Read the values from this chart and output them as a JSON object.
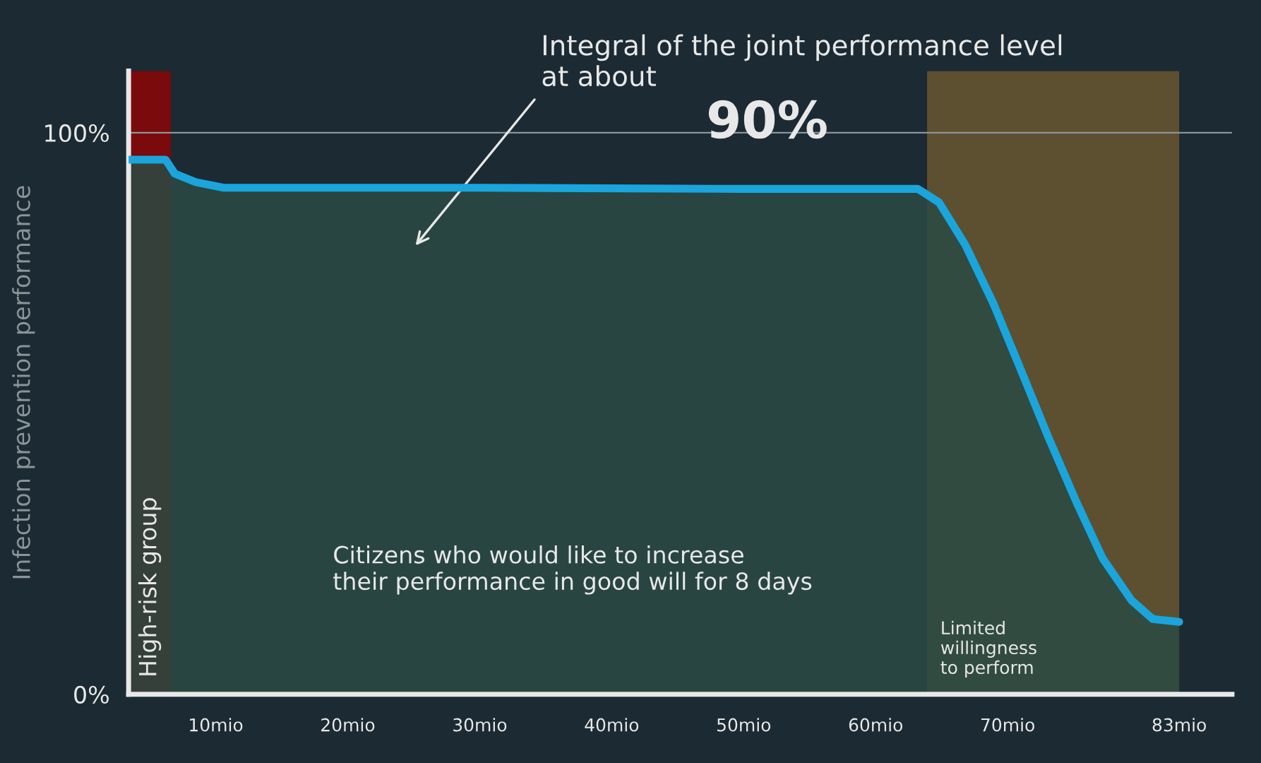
{
  "chart_data": {
    "type": "area",
    "ylabel": "Infection prevention performance",
    "x": [
      3.4,
      6.2,
      6.9,
      8.5,
      10.6,
      30,
      50,
      63.2,
      64.8,
      66.8,
      68.9,
      71,
      73.1,
      75.2,
      77.2,
      79.4,
      81,
      83
    ],
    "series": [
      {
        "color": "#1aa5dc",
        "values": [
          95.2,
          95.2,
          92.7,
          91.2,
          90.2,
          90.2,
          90.0,
          90.0,
          87.6,
          80,
          69.7,
          57.8,
          45.7,
          34.3,
          24.2,
          16.7,
          13.4,
          12.9
        ]
      }
    ],
    "xlim": [
      3.4,
      87
    ],
    "ylim": [
      0,
      111
    ],
    "xticks": [
      {
        "value": 10,
        "label": "10mio"
      },
      {
        "value": 20,
        "label": "20mio"
      },
      {
        "value": 30,
        "label": "30mio"
      },
      {
        "value": 40,
        "label": "40mio"
      },
      {
        "value": 50,
        "label": "50mio"
      },
      {
        "value": 60,
        "label": "60mio"
      },
      {
        "value": 70,
        "label": "70mio"
      },
      {
        "value": 83,
        "label": "83mio"
      }
    ],
    "yticks": [
      {
        "value": 0,
        "label": "0%"
      },
      {
        "value": 100,
        "label": "100%"
      }
    ],
    "grid": "y",
    "bands": [
      {
        "axis": "x",
        "from": 3.4,
        "to": 6.6,
        "label": "High-risk group",
        "color": "#7a0a0c"
      },
      {
        "axis": "x",
        "from": 63.9,
        "to": 83,
        "label": "Limited\nwillingness\nto perform",
        "color": "#6e5a30"
      }
    ],
    "annotations": [
      "Integral of the joint performance level\nat about",
      "90%",
      "Citizens who would like to increase\ntheir performance in good will for 8 days"
    ]
  }
}
